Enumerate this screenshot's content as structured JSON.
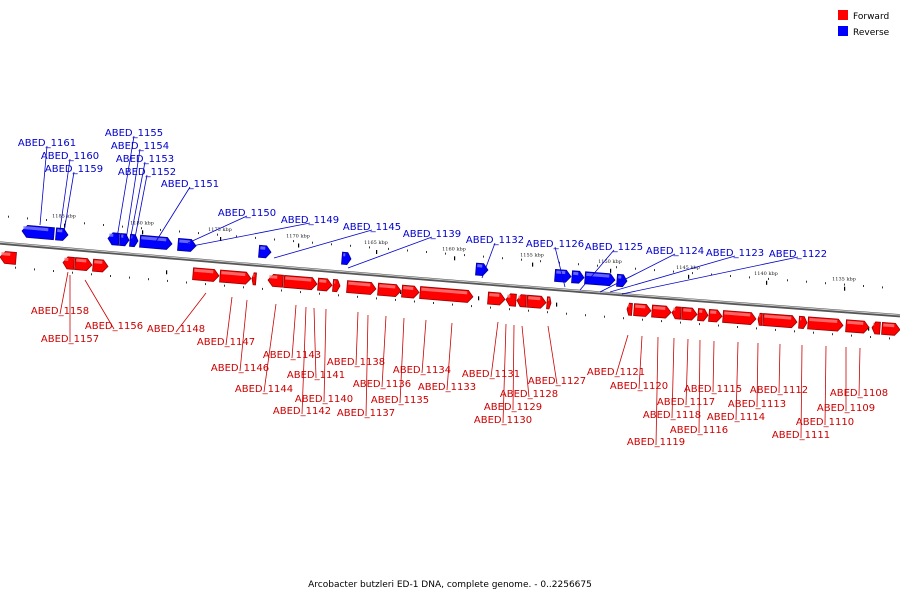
{
  "caption": "Arcobacter butzleri ED-1 DNA, complete genome. - 0..2256675",
  "legend": [
    {
      "label": "Forward",
      "color": "#ff0000"
    },
    {
      "label": "Reverse",
      "color": "#0000ff"
    }
  ],
  "colors": {
    "forward": "#ff0000",
    "reverse": "#0000ff",
    "forward_label": "#cc0000",
    "reverse_label": "#0000cc",
    "backbone": "#888888"
  },
  "scale_ticks": [
    "1185 kbp",
    "1180 kbp",
    "1175 kbp",
    "1170 kbp",
    "1165 kbp",
    "1160 kbp",
    "1155 kbp",
    "1150 kbp",
    "1145 kbp",
    "1140 kbp",
    "1135 kbp"
  ],
  "reverse_genes": [
    "ABED_1161",
    "ABED_1160",
    "ABED_1159",
    "ABED_1155",
    "ABED_1154",
    "ABED_1153",
    "ABED_1152",
    "ABED_1151",
    "ABED_1150",
    "ABED_1149",
    "ABED_1145",
    "ABED_1139",
    "ABED_1132",
    "ABED_1126",
    "ABED_1125",
    "ABED_1124",
    "ABED_1123",
    "ABED_1122"
  ],
  "forward_genes": [
    "ABED_1158",
    "ABED_1157",
    "ABED_1156",
    "ABED_1148",
    "ABED_1147",
    "ABED_1146",
    "ABED_1144",
    "ABED_1143",
    "ABED_1142",
    "ABED_1141",
    "ABED_1140",
    "ABED_1138",
    "ABED_1137",
    "ABED_1136",
    "ABED_1135",
    "ABED_1134",
    "ABED_1133",
    "ABED_1131",
    "ABED_1130",
    "ABED_1129",
    "ABED_1128",
    "ABED_1127",
    "ABED_1121",
    "ABED_1120",
    "ABED_1119",
    "ABED_1118",
    "ABED_1117",
    "ABED_1116",
    "ABED_1115",
    "ABED_1114",
    "ABED_1113",
    "ABED_1112",
    "ABED_1111",
    "ABED_1110",
    "ABED_1109",
    "ABED_1108"
  ]
}
